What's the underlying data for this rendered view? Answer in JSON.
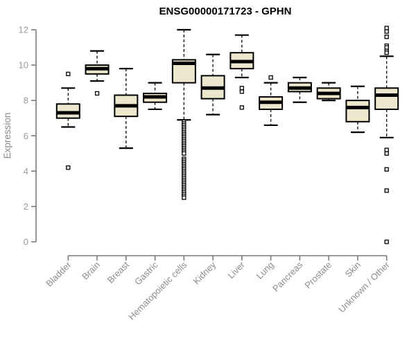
{
  "chart_data": {
    "type": "boxplot",
    "title": "ENSG00000171723 - GPHN",
    "xlabel": "",
    "ylabel": "Expression",
    "ylim": [
      0,
      12
    ],
    "yticks": [
      0,
      2,
      4,
      6,
      8,
      10,
      12
    ],
    "grid": false,
    "legend": "none",
    "categories": [
      "Bladder",
      "Brain",
      "Breast",
      "Gastric",
      "Hematopoietic cells",
      "Kidney",
      "Liver",
      "Lung",
      "Pancreas",
      "Prostate",
      "Skin",
      "Unknown / Other"
    ],
    "series": [
      {
        "category": "Bladder",
        "whisker_low": 6.5,
        "q1": 7.0,
        "median": 7.3,
        "q3": 7.8,
        "whisker_high": 8.7,
        "outliers": [
          9.5,
          4.2
        ]
      },
      {
        "category": "Brain",
        "whisker_low": 9.1,
        "q1": 9.5,
        "median": 9.8,
        "q3": 10.0,
        "whisker_high": 10.8,
        "outliers": [
          8.4
        ]
      },
      {
        "category": "Breast",
        "whisker_low": 5.3,
        "q1": 7.1,
        "median": 7.7,
        "q3": 8.3,
        "whisker_high": 9.8,
        "outliers": []
      },
      {
        "category": "Gastric",
        "whisker_low": 7.5,
        "q1": 7.9,
        "median": 8.2,
        "q3": 8.4,
        "whisker_high": 9.0,
        "outliers": []
      },
      {
        "category": "Hematopoietic cells",
        "whisker_low": 6.9,
        "q1": 9.0,
        "median": 10.1,
        "q3": 10.3,
        "whisker_high": 12.0,
        "outliers": [
          6.8,
          6.7,
          6.6,
          6.5,
          6.4,
          6.3,
          6.2,
          6.1,
          6.0,
          5.9,
          5.8,
          5.7,
          5.6,
          5.5,
          5.4,
          5.3,
          5.2,
          5.1,
          5.0,
          4.7,
          4.6,
          4.5,
          4.4,
          4.3,
          4.2,
          4.1,
          4.0,
          3.9,
          3.8,
          3.7,
          3.6,
          3.5,
          3.4,
          3.3,
          3.2,
          3.1,
          3.0,
          2.9,
          2.8,
          2.7,
          2.6,
          2.5
        ]
      },
      {
        "category": "Kidney",
        "whisker_low": 7.2,
        "q1": 8.1,
        "median": 8.7,
        "q3": 9.4,
        "whisker_high": 10.6,
        "outliers": []
      },
      {
        "category": "Liver",
        "whisker_low": 9.3,
        "q1": 9.8,
        "median": 10.2,
        "q3": 10.7,
        "whisker_high": 11.7,
        "outliers": [
          8.7,
          8.5,
          7.6
        ]
      },
      {
        "category": "Lung",
        "whisker_low": 6.6,
        "q1": 7.5,
        "median": 7.9,
        "q3": 8.2,
        "whisker_high": 9.0,
        "outliers": [
          9.3
        ]
      },
      {
        "category": "Pancreas",
        "whisker_low": 7.9,
        "q1": 8.5,
        "median": 8.7,
        "q3": 9.0,
        "whisker_high": 9.3,
        "outliers": []
      },
      {
        "category": "Prostate",
        "whisker_low": 8.0,
        "q1": 8.1,
        "median": 8.4,
        "q3": 8.7,
        "whisker_high": 9.0,
        "outliers": []
      },
      {
        "category": "Skin",
        "whisker_low": 6.2,
        "q1": 6.8,
        "median": 7.6,
        "q3": 8.0,
        "whisker_high": 8.8,
        "outliers": []
      },
      {
        "category": "Unknown / Other",
        "whisker_low": 5.9,
        "q1": 7.5,
        "median": 8.3,
        "q3": 8.7,
        "whisker_high": 10.5,
        "outliers": [
          12.1,
          11.9,
          11.6,
          11.1,
          11.0,
          10.8,
          10.7,
          5.2,
          5.0,
          4.1,
          2.9,
          0.0
        ]
      }
    ],
    "colors": {
      "background": "#ffffff",
      "box_fill": "#ede7ce",
      "box_border": "#000000",
      "median": "#000000",
      "whisker": "#000000",
      "outlier_stroke": "#000000",
      "outlier_fill": "#ffffff",
      "axis_line": "#737373",
      "tick_label": "#9a9a9a",
      "category_label": "#8c8c8c",
      "axis_title": "#8a8a8a",
      "title": "#000000"
    }
  }
}
